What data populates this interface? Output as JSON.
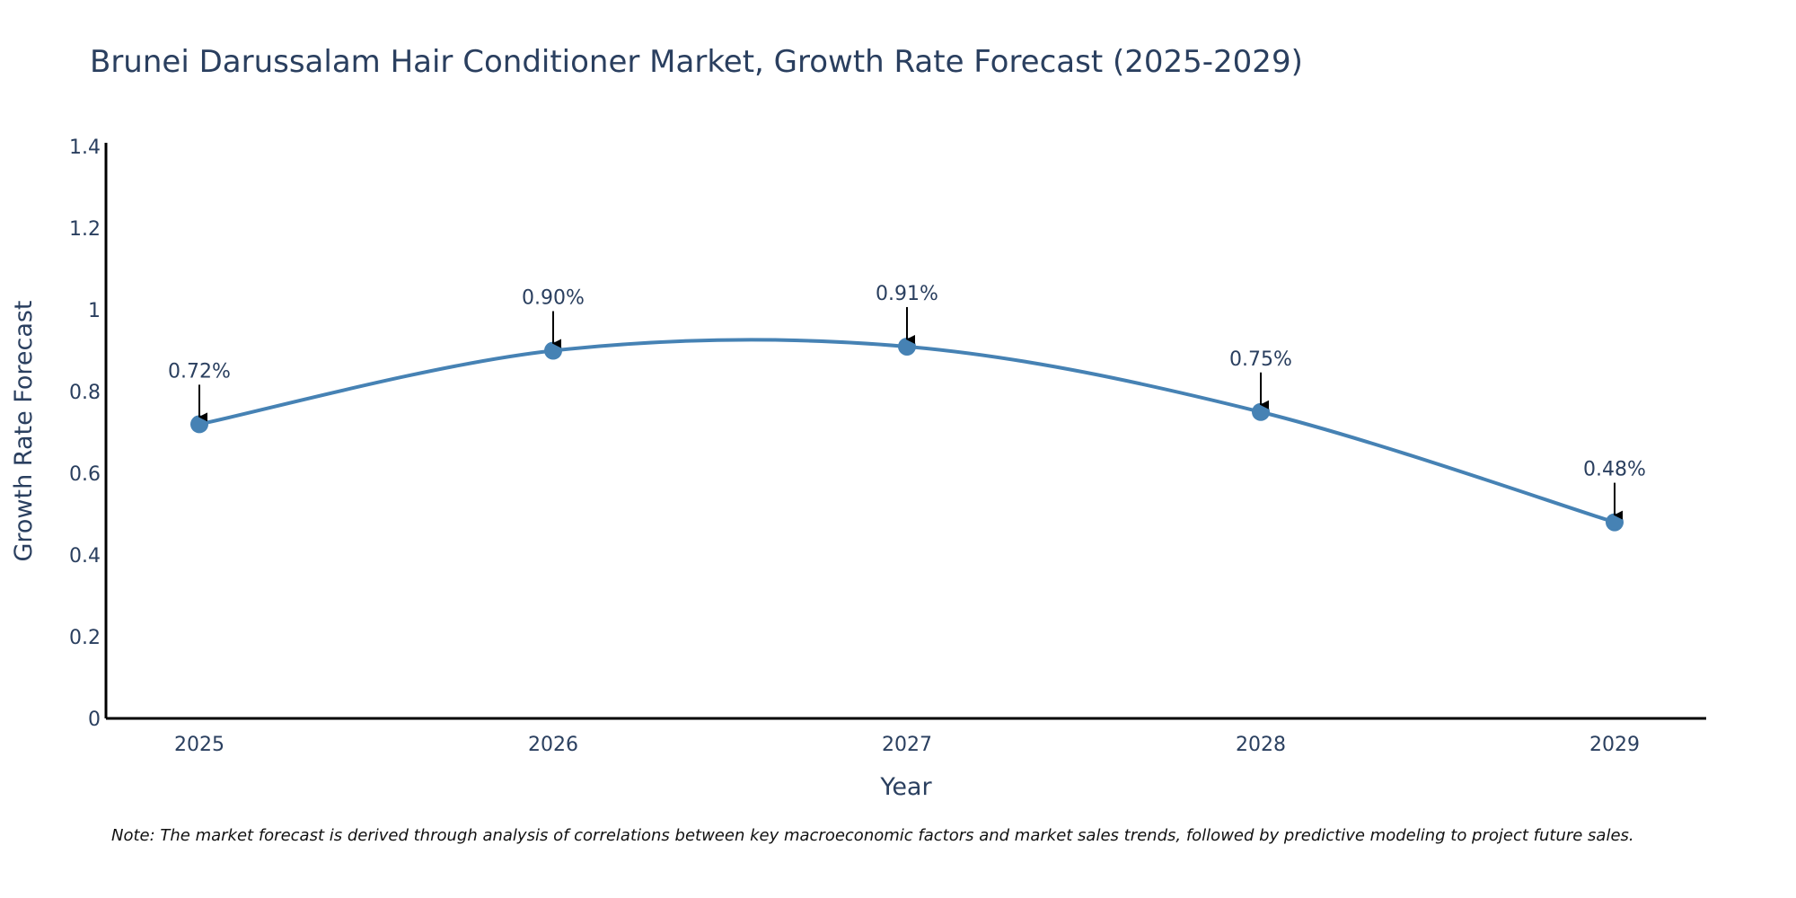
{
  "chart_data": {
    "type": "line",
    "title": "Brunei Darussalam Hair Conditioner Market, Growth Rate Forecast (2025-2029)",
    "xlabel": "Year",
    "ylabel": "Growth Rate Forecast",
    "categories": [
      "2025",
      "2026",
      "2027",
      "2028",
      "2029"
    ],
    "series": [
      {
        "name": "Growth Rate Forecast",
        "values": [
          0.72,
          0.9,
          0.91,
          0.75,
          0.48
        ]
      }
    ],
    "annotations": [
      "0.72%",
      "0.90%",
      "0.91%",
      "0.75%",
      "0.48%"
    ],
    "ylim": [
      0,
      1.4
    ],
    "yticks": [
      "0",
      "0.2",
      "0.4",
      "0.6",
      "0.8",
      "1",
      "1.2",
      "1.4"
    ],
    "yticks_values": [
      0,
      0.2,
      0.4,
      0.6,
      0.8,
      1.0,
      1.2,
      1.4
    ],
    "grid": false,
    "line_style": "spline"
  },
  "colors": {
    "line": "#4682b4",
    "marker": "#4682b4",
    "axis": "#000000",
    "text": "#2a3f5f",
    "arrow": "#000000"
  },
  "note": "Note: The market forecast is derived through analysis of correlations between key macroeconomic factors and market sales trends, followed by predictive modeling to project future sales."
}
